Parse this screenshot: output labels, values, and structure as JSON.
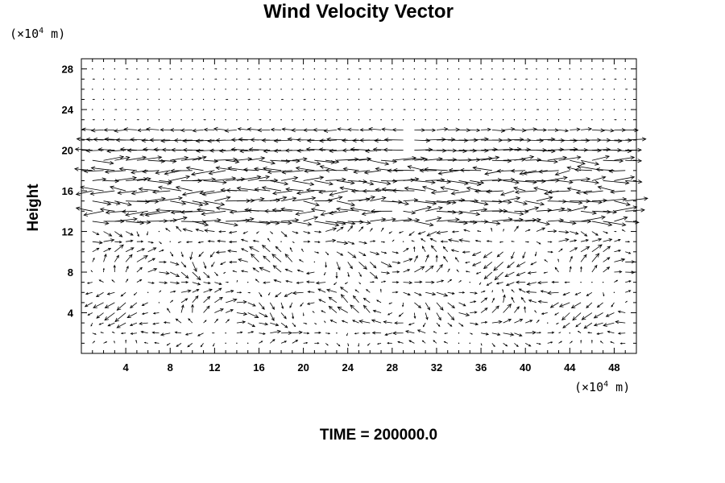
{
  "chart_data": {
    "type": "vector_field",
    "title": "Wind Velocity Vector",
    "ylabel": "Height",
    "xlabel": "",
    "x_unit": {
      "prefix": "(×10",
      "exp": "4",
      "suffix": " m)"
    },
    "y_unit": {
      "prefix": "(×10",
      "exp": "4",
      "suffix": " m)"
    },
    "xlim": [
      0,
      50
    ],
    "ylim": [
      0,
      29
    ],
    "x_ticks": [
      4,
      8,
      12,
      16,
      20,
      24,
      28,
      32,
      36,
      40,
      44,
      48
    ],
    "y_ticks": [
      4,
      8,
      12,
      16,
      20,
      24,
      28
    ],
    "grid_spacing": {
      "dx": 1,
      "dy": 1
    },
    "vectors_note": "Strong westerly/easterly shear band between heights 12 and 22, weak circulation below 12, near-zero above 23"
  },
  "footer": {
    "time_label": "TIME = 200000.0"
  }
}
